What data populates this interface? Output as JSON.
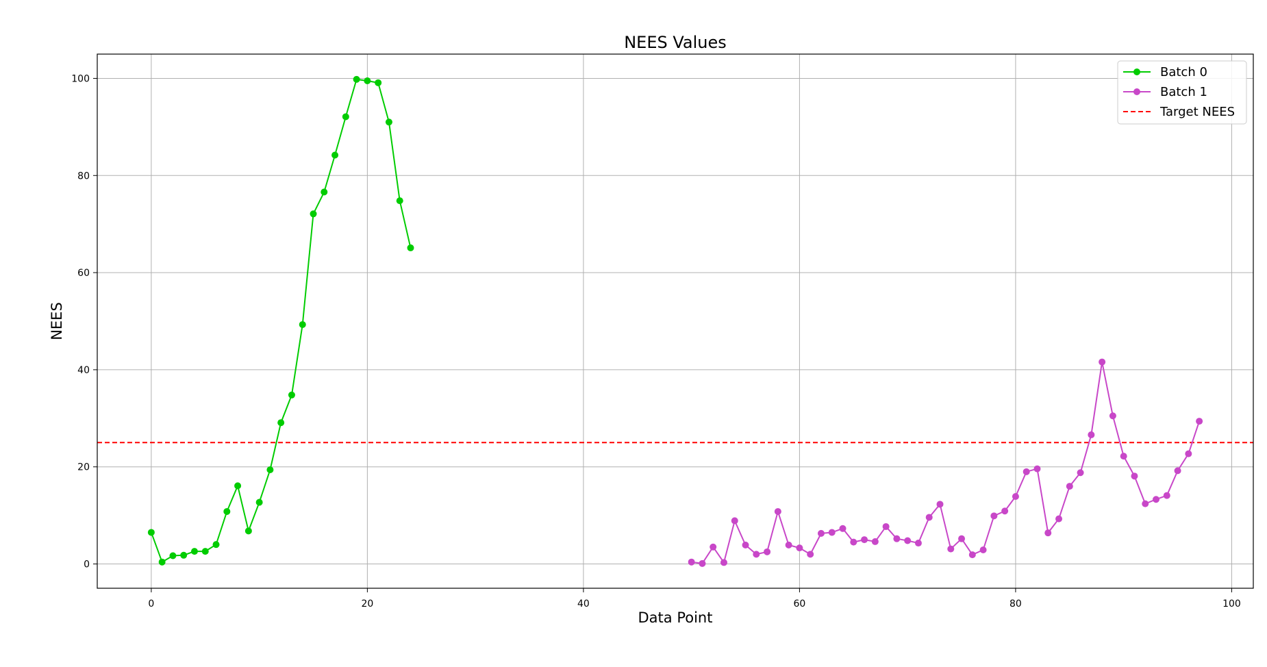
{
  "chart_data": {
    "type": "line",
    "title": "NEES Values",
    "xlabel": "Data Point",
    "ylabel": "NEES",
    "xlim": [
      -5,
      102
    ],
    "ylim": [
      -5,
      105
    ],
    "xticks": [
      0,
      20,
      40,
      60,
      80,
      100
    ],
    "yticks": [
      0,
      20,
      40,
      60,
      80,
      100
    ],
    "grid": true,
    "legend_position": "top-right",
    "series": [
      {
        "name": "Batch 0",
        "color": "#00cc00",
        "marker": "circle",
        "x": [
          0,
          1,
          2,
          3,
          4,
          5,
          6,
          7,
          8,
          9,
          10,
          11,
          12,
          13,
          14,
          15,
          16,
          17,
          18,
          19,
          20,
          21,
          22,
          23,
          24
        ],
        "values": [
          6.5,
          0.4,
          1.7,
          1.8,
          2.6,
          2.6,
          4.0,
          10.8,
          16.1,
          6.8,
          12.7,
          19.4,
          29.1,
          34.8,
          49.3,
          72.1,
          76.6,
          84.2,
          92.1,
          99.8,
          99.5,
          99.1,
          91.0,
          74.8,
          65.1
        ]
      },
      {
        "name": "Batch 1",
        "color": "#c847c8",
        "marker": "circle",
        "x": [
          50,
          51,
          52,
          53,
          54,
          55,
          56,
          57,
          58,
          59,
          60,
          61,
          62,
          63,
          64,
          65,
          66,
          67,
          68,
          69,
          70,
          71,
          72,
          73,
          74,
          75,
          76,
          77,
          78,
          79,
          80,
          81,
          82,
          83,
          84,
          85,
          86,
          87,
          88,
          89,
          90,
          91,
          92,
          93,
          94,
          95,
          96,
          97
        ],
        "values": [
          0.4,
          0.1,
          3.5,
          0.3,
          8.9,
          3.9,
          2.0,
          2.5,
          10.8,
          3.9,
          3.3,
          2.0,
          6.3,
          6.5,
          7.3,
          4.5,
          5.0,
          4.6,
          7.7,
          5.2,
          4.8,
          4.3,
          9.6,
          12.3,
          3.1,
          5.2,
          1.9,
          2.9,
          9.9,
          10.9,
          13.9,
          19.0,
          19.6,
          6.4,
          9.3,
          16.0,
          18.8,
          26.6,
          41.6,
          30.5,
          22.2,
          18.1,
          12.4,
          13.3,
          14.1,
          19.2,
          22.7,
          29.4
        ]
      }
    ],
    "reference_lines": [
      {
        "name": "Target NEES",
        "value": 25,
        "color": "#ff0000",
        "style": "dashed"
      }
    ]
  }
}
